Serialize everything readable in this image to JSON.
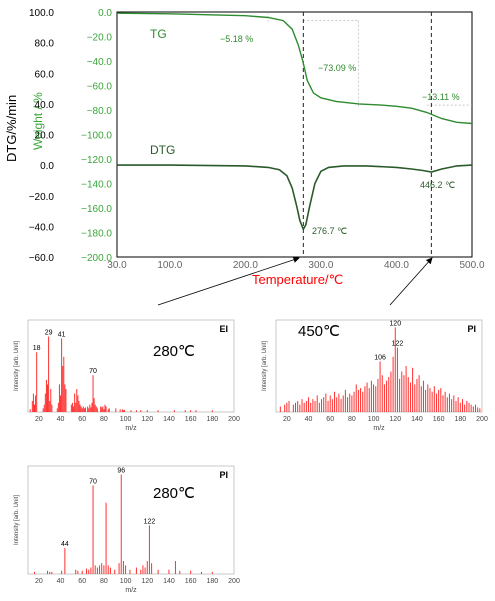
{
  "colors": {
    "tg": "#2e8b2e",
    "dtg": "#2a5a2a",
    "tg_axis": "#3aa63a",
    "temp_label": "#ff0000",
    "ms": "#ff3030",
    "ms_text": "#000000"
  },
  "chart_data": [
    {
      "type": "line",
      "panel": "thermogram",
      "xlabel": "Temperature/℃",
      "ylabel_left": "DTG/%/min",
      "ylabel_right": "Weight / %",
      "xlim": [
        30,
        500
      ],
      "ylim_dtg": [
        -60,
        100
      ],
      "ylim_weight": [
        -200,
        0
      ],
      "x_ticks": [
        "30.0",
        "100.0",
        "200.0",
        "300.0",
        "400.0",
        "500.0"
      ],
      "dtg_ticks": [
        "100.0",
        "80.0",
        "60.0",
        "40.0",
        "20.0",
        "0.0",
        "−20.0",
        "−40.0",
        "−60.0"
      ],
      "weight_ticks": [
        "0.0",
        "−20.0",
        "−40.0",
        "−60.0",
        "−80.0",
        "−100.0",
        "−120.0",
        "−140.0",
        "−160.0",
        "−180.0",
        "−200.0"
      ],
      "series": [
        {
          "name": "TG",
          "axis": "weight",
          "x": [
            30,
            100,
            200,
            230,
            250,
            262,
            270,
            276,
            282,
            290,
            300,
            320,
            350,
            380,
            400,
            420,
            440,
            460,
            480,
            500
          ],
          "y": [
            -1,
            -1.5,
            -3,
            -4.5,
            -7,
            -14,
            -27,
            -40,
            -56,
            -66,
            -70,
            -73,
            -75,
            -76,
            -77,
            -78.5,
            -82,
            -87,
            -90,
            -91
          ]
        },
        {
          "name": "DTG",
          "axis": "dtg",
          "x": [
            30,
            100,
            200,
            230,
            245,
            255,
            262,
            268,
            272,
            276.7,
            280,
            285,
            292,
            300,
            310,
            330,
            360,
            400,
            420,
            435,
            446.2,
            460,
            480,
            500
          ],
          "y": [
            0,
            0,
            -0.5,
            -1.5,
            -3,
            -7,
            -15,
            -27,
            -36,
            -42,
            -39,
            -27,
            -12,
            -4,
            -1.5,
            -0.5,
            -0.5,
            -1.5,
            -2.5,
            -3.5,
            -4.5,
            -2.5,
            -0.5,
            0
          ]
        }
      ],
      "annotations": [
        "−5.18 %",
        "−73.09 %",
        "−13.11 %",
        "276.7 ℃",
        "446.2 ℃"
      ],
      "markers": [
        276.7,
        446.2
      ]
    },
    {
      "type": "bar",
      "panel": "EI mass spectrum 280℃",
      "title": "EI",
      "subtitle": "280℃",
      "xlabel": "m/z",
      "ylabel": "Intensity [arb. Unit]",
      "xlim": [
        10,
        200
      ],
      "x_ticks": [
        "20",
        "40",
        "60",
        "80",
        "100",
        "120",
        "140",
        "160",
        "180",
        "200"
      ],
      "peaks_mz": [
        12,
        14,
        15,
        16,
        17,
        18,
        24,
        25,
        26,
        27,
        28,
        29,
        30,
        31,
        32,
        37,
        38,
        39,
        40,
        41,
        42,
        43,
        44,
        45,
        50,
        51,
        52,
        53,
        54,
        55,
        56,
        57,
        58,
        59,
        60,
        61,
        62,
        63,
        65,
        66,
        67,
        68,
        69,
        70,
        71,
        72,
        73,
        74,
        77,
        78,
        79,
        80,
        81,
        82,
        84,
        85,
        91,
        95,
        97,
        98,
        99,
        105,
        110,
        114,
        120,
        130,
        145,
        155,
        160,
        165,
        180
      ],
      "peaks_rel": [
        3,
        12,
        20,
        8,
        18,
        65,
        4,
        8,
        20,
        35,
        30,
        82,
        12,
        25,
        8,
        4,
        10,
        30,
        18,
        80,
        50,
        60,
        30,
        25,
        8,
        10,
        6,
        20,
        10,
        25,
        18,
        12,
        8,
        6,
        4,
        6,
        4,
        5,
        6,
        4,
        8,
        5,
        10,
        40,
        15,
        8,
        6,
        4,
        6,
        5,
        6,
        3,
        8,
        6,
        3,
        4,
        4,
        3,
        3,
        2,
        2,
        2,
        2,
        2,
        2,
        2,
        2,
        2,
        2,
        2,
        2
      ],
      "labeled_peaks": [
        {
          "mz": 18,
          "label": "18"
        },
        {
          "mz": 29,
          "label": "29"
        },
        {
          "mz": 41,
          "label": "41"
        },
        {
          "mz": 70,
          "label": "70"
        }
      ]
    },
    {
      "type": "bar",
      "panel": "PI mass spectrum 450℃",
      "title": "PI",
      "subtitle": "450℃",
      "xlabel": "m/z",
      "ylabel": "Intensity [arb. Unit]",
      "xlim": [
        10,
        200
      ],
      "x_ticks": [
        "20",
        "40",
        "60",
        "80",
        "100",
        "120",
        "140",
        "160",
        "180",
        "200"
      ],
      "peaks_mz": [
        14,
        18,
        20,
        22,
        26,
        28,
        30,
        32,
        34,
        36,
        38,
        40,
        42,
        44,
        46,
        48,
        50,
        52,
        54,
        56,
        58,
        60,
        62,
        64,
        66,
        68,
        70,
        72,
        74,
        76,
        78,
        80,
        82,
        84,
        86,
        88,
        90,
        92,
        94,
        96,
        98,
        100,
        102,
        104,
        106,
        108,
        110,
        112,
        114,
        116,
        118,
        120,
        122,
        124,
        126,
        128,
        130,
        132,
        134,
        136,
        138,
        140,
        142,
        144,
        146,
        148,
        150,
        152,
        154,
        156,
        158,
        160,
        162,
        164,
        166,
        168,
        170,
        172,
        174,
        176,
        178,
        180,
        182,
        184,
        186,
        188,
        190,
        192,
        194,
        196,
        198
      ],
      "peaks_rel": [
        6,
        8,
        10,
        12,
        8,
        10,
        12,
        8,
        14,
        10,
        12,
        16,
        10,
        14,
        12,
        18,
        10,
        14,
        16,
        20,
        12,
        18,
        14,
        22,
        16,
        20,
        14,
        18,
        24,
        16,
        20,
        18,
        22,
        30,
        24,
        26,
        22,
        28,
        32,
        26,
        34,
        30,
        28,
        36,
        55,
        40,
        30,
        34,
        38,
        44,
        60,
        92,
        70,
        36,
        44,
        40,
        50,
        38,
        32,
        48,
        30,
        36,
        40,
        28,
        34,
        24,
        30,
        26,
        22,
        28,
        20,
        24,
        26,
        18,
        22,
        16,
        20,
        14,
        18,
        12,
        16,
        10,
        14,
        8,
        12,
        10,
        8,
        6,
        8,
        5,
        4
      ],
      "labeled_peaks": [
        {
          "mz": 106,
          "label": "106"
        },
        {
          "mz": 120,
          "label": "120"
        },
        {
          "mz": 122,
          "label": "122"
        }
      ]
    },
    {
      "type": "bar",
      "panel": "PI mass spectrum 280℃",
      "title": "PI",
      "subtitle": "280℃",
      "xlabel": "m/z",
      "ylabel": "Intensity [arb. Unit]",
      "xlim": [
        10,
        200
      ],
      "x_ticks": [
        "20",
        "40",
        "60",
        "80",
        "100",
        "120",
        "140",
        "160",
        "180",
        "200"
      ],
      "peaks_mz": [
        16,
        28,
        30,
        32,
        41,
        44,
        54,
        56,
        60,
        64,
        66,
        68,
        70,
        72,
        74,
        76,
        78,
        80,
        82,
        84,
        86,
        90,
        94,
        96,
        98,
        100,
        104,
        110,
        114,
        116,
        118,
        120,
        122,
        124,
        130,
        140,
        146,
        150,
        160,
        170,
        180
      ],
      "peaks_rel": [
        2,
        3,
        2,
        2,
        3,
        24,
        4,
        3,
        3,
        5,
        4,
        6,
        82,
        8,
        6,
        8,
        10,
        8,
        66,
        8,
        6,
        4,
        10,
        92,
        12,
        8,
        4,
        6,
        4,
        8,
        6,
        12,
        45,
        10,
        4,
        4,
        12,
        3,
        3,
        2,
        2
      ],
      "labeled_peaks": [
        {
          "mz": 44,
          "label": "44"
        },
        {
          "mz": 70,
          "label": "70"
        },
        {
          "mz": 96,
          "label": "96"
        },
        {
          "mz": 122,
          "label": "122"
        }
      ]
    }
  ]
}
